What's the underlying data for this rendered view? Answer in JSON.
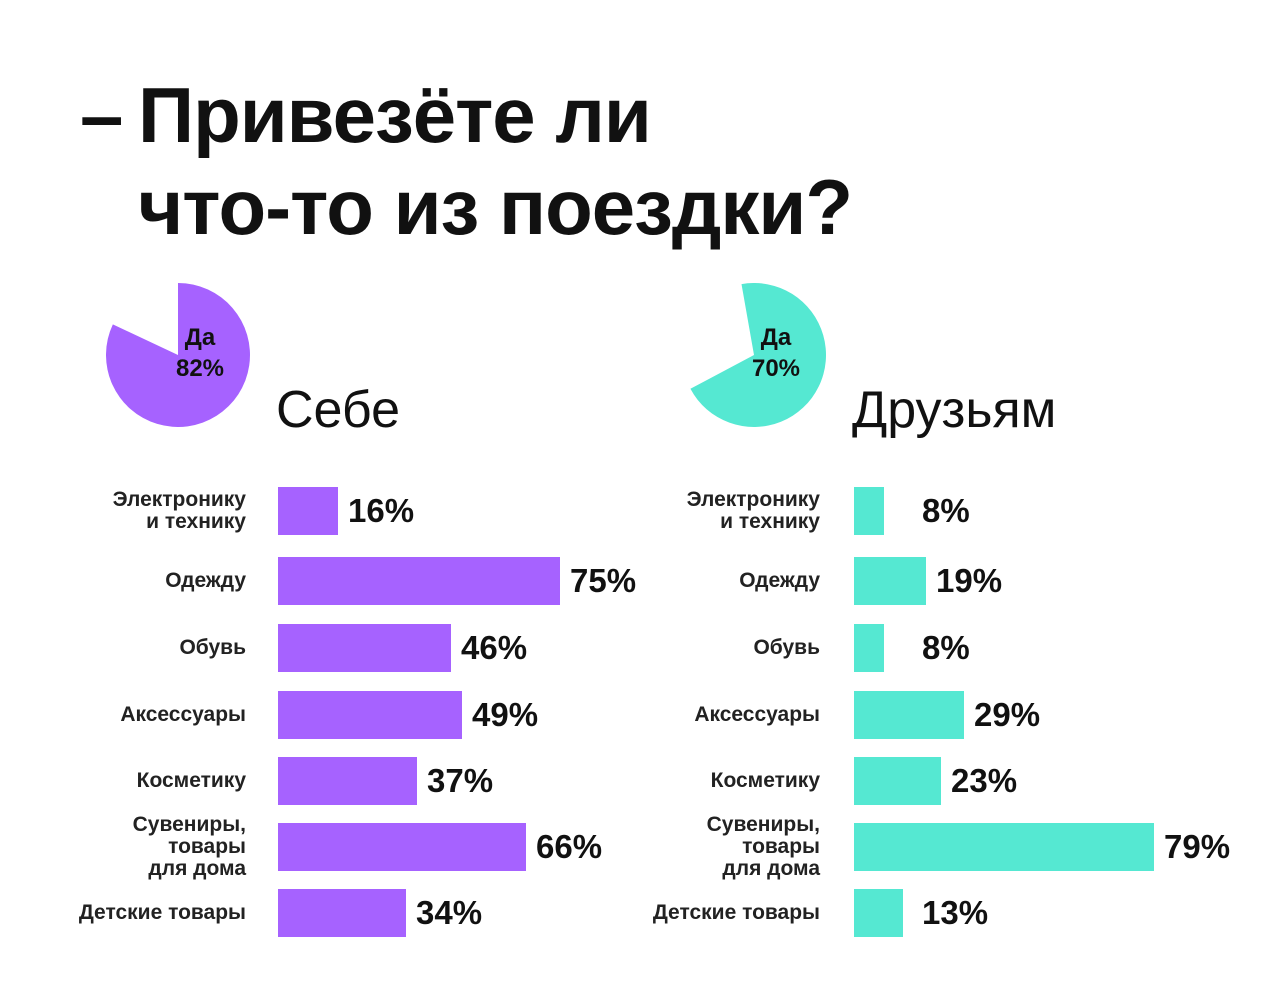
{
  "title": {
    "dash": "–",
    "line1": "Привезёте ли",
    "line2": "что-то из поездки?"
  },
  "chart_data": [
    {
      "type": "bar",
      "orientation": "horizontal",
      "title": "Себе",
      "color": "#a662ff",
      "pie": {
        "label": "Да",
        "value": 82,
        "value_label": "82%"
      },
      "categories": [
        [
          "Электронику",
          "и технику"
        ],
        [
          "Одежду"
        ],
        [
          "Обувь"
        ],
        [
          "Аксессуары"
        ],
        [
          "Косметику"
        ],
        [
          "Сувениры,",
          "товары",
          "для дома"
        ],
        [
          "Детские товары"
        ]
      ],
      "values": [
        16,
        75,
        46,
        49,
        37,
        66,
        34
      ],
      "value_labels": [
        "16%",
        "75%",
        "46%",
        "49%",
        "37%",
        "66%",
        "34%"
      ]
    },
    {
      "type": "bar",
      "orientation": "horizontal",
      "title": "Друзьям",
      "color": "#55e8d2",
      "pie": {
        "label": "Да",
        "value": 70,
        "value_label": "70%"
      },
      "categories": [
        [
          "Электронику",
          "и технику"
        ],
        [
          "Одежду"
        ],
        [
          "Обувь"
        ],
        [
          "Аксессуары"
        ],
        [
          "Косметику"
        ],
        [
          "Сувениры,",
          "товары",
          "для дома"
        ],
        [
          "Детские товары"
        ]
      ],
      "values": [
        8,
        19,
        8,
        29,
        23,
        79,
        13
      ],
      "value_labels": [
        "8%",
        "19%",
        "8%",
        "29%",
        "23%",
        "79%",
        "13%"
      ]
    }
  ]
}
